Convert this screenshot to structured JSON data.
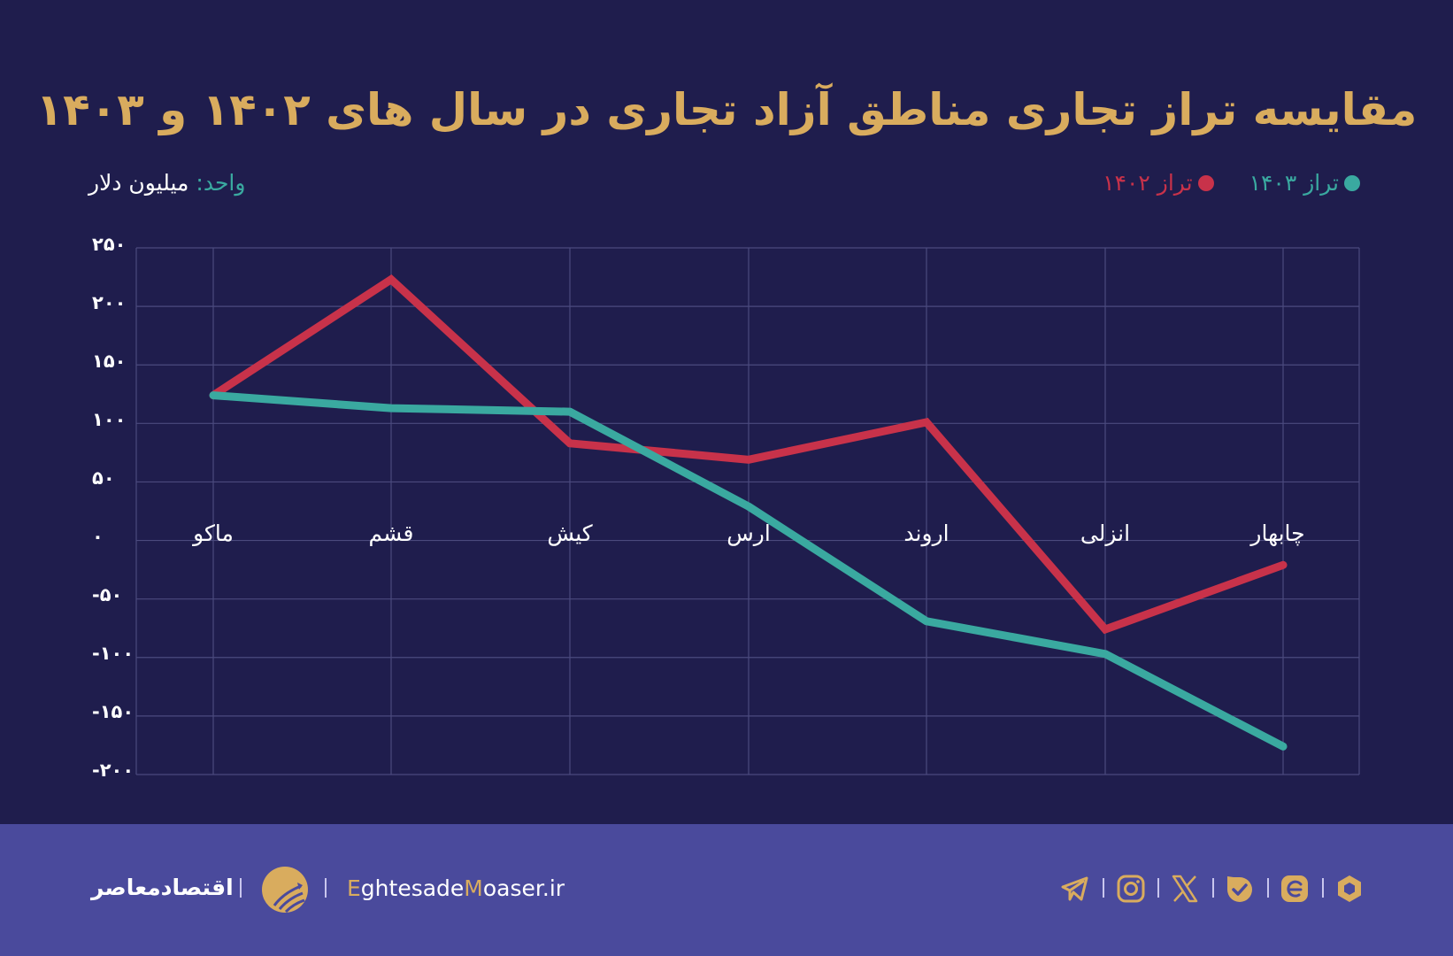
{
  "title": "مقایسه تراز تجاری مناطق آزاد تجاری در سال های ۱۴۰۲ و ۱۴۰۳",
  "unit": {
    "key": "واحد:",
    "value": "میلیون دلار"
  },
  "legend": [
    {
      "label": "تراز ۱۴۰۳",
      "color": "#3aa9a0"
    },
    {
      "label": "تراز ۱۴۰۲",
      "color": "#c8324a"
    }
  ],
  "y_ticks": [
    "۲۵۰",
    "۲۰۰",
    "۱۵۰",
    "۱۰۰",
    "۵۰",
    "۰",
    "-۵۰",
    "-۱۰۰",
    "-۱۵۰",
    "-۲۰۰"
  ],
  "x_labels": [
    "ماکو",
    "قشم",
    "کیش",
    "ارس",
    "اروند",
    "انزلی",
    "چابهار"
  ],
  "chart_data": {
    "type": "line",
    "title": "مقایسه تراز تجاری مناطق آزاد تجاری در سال های ۱۴۰۲ و ۱۴۰۳",
    "xlabel": "",
    "ylabel": "میلیون دلار",
    "categories": [
      "ماکو",
      "قشم",
      "کیش",
      "ارس",
      "اروند",
      "انزلی",
      "چابهار"
    ],
    "series": [
      {
        "name": "تراز ۱۴۰۲",
        "color": "#c8324a",
        "values": [
          124,
          223,
          83,
          69,
          101,
          -76,
          -21
        ]
      },
      {
        "name": "تراز ۱۴۰۳",
        "color": "#3aa9a0",
        "values": [
          124,
          113,
          110,
          29,
          -69,
          -97,
          -176
        ]
      }
    ],
    "ylim": [
      -200,
      250
    ],
    "y_tick_step": 50,
    "grid": true,
    "legend_position": "top-right"
  },
  "footer": {
    "brand_fa": "اقتصادمعاصر",
    "site_prefix_1": "E",
    "site_part_1": "ghtesade",
    "site_prefix_2": "M",
    "site_part_2": "oaser.ir",
    "social_icons": [
      "telegram-icon",
      "instagram-icon",
      "x-icon",
      "bale-icon",
      "eitaa-icon",
      "rubika-icon"
    ]
  },
  "colors": {
    "background": "#1f1d4d",
    "footer": "#4a4a9c",
    "accent": "#d9ac5e",
    "teal": "#3aa9a0",
    "red": "#c8324a"
  }
}
